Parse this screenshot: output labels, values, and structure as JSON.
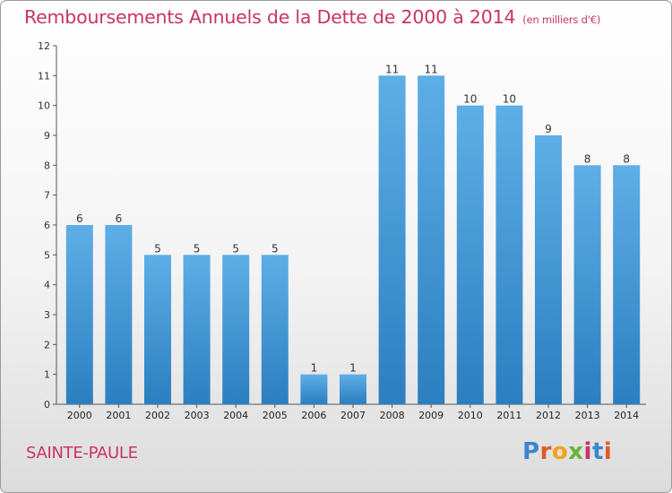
{
  "header": {
    "title": "Remboursements Annuels de la Dette de 2000 à 2014",
    "unit_note": "(en milliers d'€)"
  },
  "footer": {
    "commune": "SAINTE-PAULE",
    "logo_text": "Proxiti"
  },
  "colors": {
    "title": "#c8336a",
    "bar_top": "#5eaee6",
    "bar_bottom": "#2b7fc0",
    "logo_letters": [
      "#3a86cf",
      "#e05a2a",
      "#f2a21b",
      "#6ab23a",
      "#c8336a",
      "#3a86cf",
      "#e05a2a"
    ]
  },
  "chart_data": {
    "type": "bar",
    "title": "Remboursements Annuels de la Dette de 2000 à 2014",
    "subtitle": "(en milliers d'€)",
    "xlabel": "",
    "ylabel": "",
    "categories": [
      "2000",
      "2001",
      "2002",
      "2003",
      "2004",
      "2005",
      "2006",
      "2007",
      "2008",
      "2009",
      "2010",
      "2011",
      "2012",
      "2013",
      "2014"
    ],
    "values": [
      6,
      6,
      5,
      5,
      5,
      5,
      1,
      1,
      11,
      11,
      10,
      10,
      9,
      8,
      8
    ],
    "data_labels": [
      "6",
      "6",
      "5",
      "5",
      "5",
      "5",
      "1",
      "1",
      "11",
      "11",
      "10",
      "10",
      "9",
      "8",
      "8"
    ],
    "ylim": [
      0,
      12
    ],
    "yticks": [
      0,
      1,
      2,
      3,
      4,
      5,
      6,
      7,
      8,
      9,
      10,
      11,
      12
    ],
    "grid": false,
    "legend": "none"
  }
}
